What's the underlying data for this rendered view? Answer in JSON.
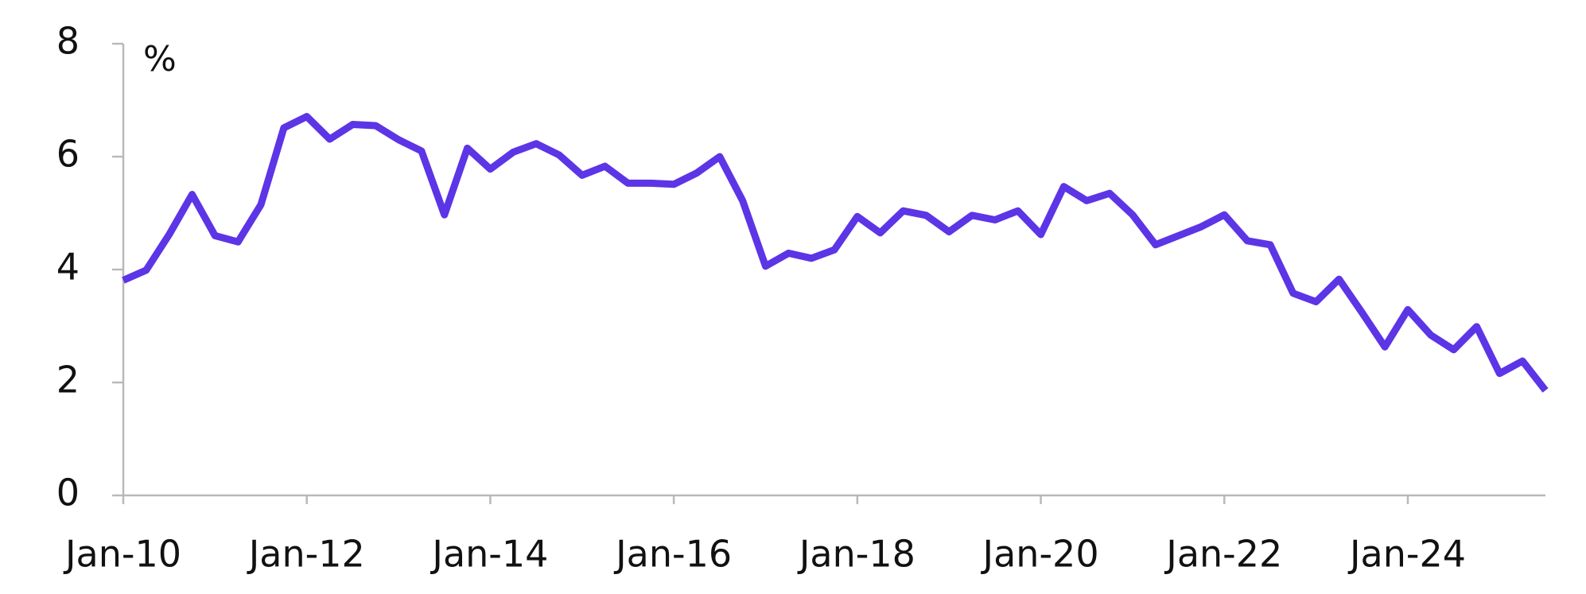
{
  "chart_data": {
    "type": "line",
    "y_label": "%",
    "categories": [
      "Jan-10",
      null,
      null,
      null,
      null,
      null,
      null,
      null,
      "Jan-12",
      null,
      null,
      null,
      null,
      null,
      null,
      null,
      "Jan-14",
      null,
      null,
      null,
      null,
      null,
      null,
      null,
      "Jan-16",
      null,
      null,
      null,
      null,
      null,
      null,
      null,
      "Jan-18",
      null,
      null,
      null,
      null,
      null,
      null,
      null,
      "Jan-20",
      null,
      null,
      null,
      null,
      null,
      null,
      null,
      "Jan-22",
      null,
      null,
      null,
      null,
      null,
      null,
      null,
      "Jan-24",
      null,
      null,
      null,
      null,
      null,
      null
    ],
    "series": [
      {
        "color": "#5c35e6",
        "values": [
          3.81,
          3.99,
          4.62,
          5.33,
          4.6,
          4.49,
          5.15,
          6.51,
          6.71,
          6.31,
          6.57,
          6.55,
          6.3,
          6.1,
          4.97,
          6.15,
          5.78,
          6.08,
          6.23,
          6.03,
          5.67,
          5.83,
          5.53,
          5.53,
          5.51,
          5.71,
          6.0,
          5.22,
          4.06,
          4.29,
          4.2,
          4.35,
          4.94,
          4.65,
          5.04,
          4.96,
          4.67,
          4.96,
          4.88,
          5.04,
          4.62,
          5.47,
          5.22,
          5.35,
          4.97,
          4.44,
          4.6,
          4.76,
          4.97,
          4.51,
          4.44,
          3.58,
          3.43,
          3.83,
          3.24,
          2.63,
          3.29,
          2.84,
          2.58,
          2.99,
          2.16,
          2.38,
          1.86
        ]
      }
    ],
    "ylim": [
      0,
      8
    ],
    "yticks": [
      0,
      2,
      4,
      6,
      8
    ]
  }
}
